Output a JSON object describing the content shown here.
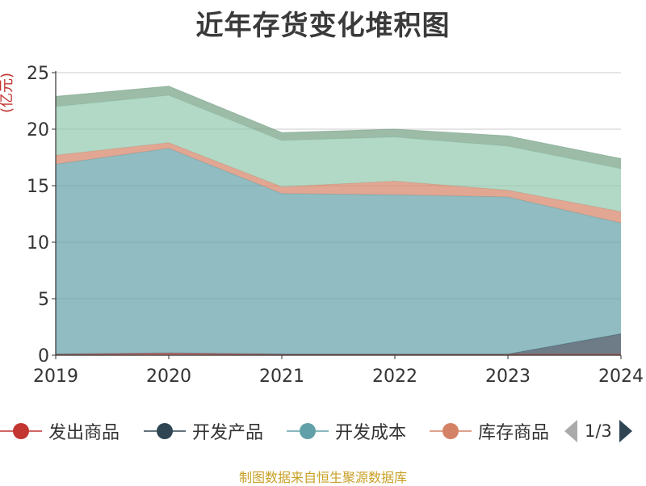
{
  "chart_data": {
    "type": "area",
    "stacked": true,
    "title": "近年存货变化堆积图",
    "ylabel": "(亿元)",
    "xlabel": "",
    "categories": [
      "2019",
      "2020",
      "2021",
      "2022",
      "2023",
      "2024"
    ],
    "ylim": [
      0,
      25
    ],
    "yticks": [
      0,
      5,
      10,
      15,
      20,
      25
    ],
    "grid": true,
    "series": [
      {
        "name": "发出商品",
        "color": "#c23531",
        "values": [
          0.1,
          0.2,
          0.1,
          0.1,
          0.1,
          0.1
        ]
      },
      {
        "name": "开发产品",
        "color": "#2f4554",
        "values": [
          0,
          0,
          0,
          0,
          0,
          1.8
        ]
      },
      {
        "name": "开发成本",
        "color": "#61a0a8",
        "values": [
          16.8,
          18.1,
          14.2,
          14.1,
          13.9,
          9.8
        ]
      },
      {
        "name": "库存商品",
        "color": "#d48265",
        "values": [
          0.8,
          0.5,
          0.6,
          1.2,
          0.6,
          1.0
        ]
      },
      {
        "name": "",
        "color": "#91c7ae",
        "values": [
          4.3,
          4.2,
          4.1,
          3.9,
          3.9,
          3.8
        ]
      },
      {
        "name": "",
        "color": "#749f83",
        "values": [
          0.9,
          0.8,
          0.7,
          0.7,
          0.9,
          0.9
        ]
      }
    ]
  },
  "legend": {
    "items": [
      {
        "name": "发出商品",
        "color": "#c23531"
      },
      {
        "name": "开发产品",
        "color": "#2f4554"
      },
      {
        "name": "开发成本",
        "color": "#61a0a8"
      },
      {
        "name": "库存商品",
        "color": "#d48265"
      }
    ],
    "page": "1/3",
    "prev_color": "#aaaaaa",
    "next_color": "#2f4554"
  },
  "source": "制图数据来自恒生聚源数据库"
}
